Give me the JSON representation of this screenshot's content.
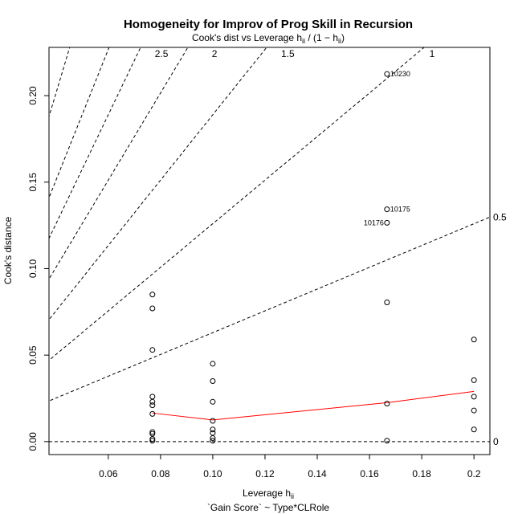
{
  "chart_data": {
    "type": "scatter",
    "title": "Homogeneity for Improv of Prog Skill in Recursion",
    "subtitle": "Cook's dist vs Leverage  h",
    "subtitle_formula": {
      "base": "h",
      "sub": "ii",
      "mid": " / (1 − h",
      "sub2": "ii",
      "end": ")"
    },
    "xlabel": "Leverage  h",
    "xlabel_sub": "ii",
    "ylabel": "Cook's distance",
    "model": "`Gain Score` ~ Type*CLRole",
    "xlim": [
      0.0373,
      0.2061
    ],
    "ylim": [
      -0.0075,
      0.2279
    ],
    "x_ticks": [
      {
        "value": 0.06,
        "label": "0.06"
      },
      {
        "value": 0.08,
        "label": "0.08"
      },
      {
        "value": 0.1,
        "label": "0.10"
      },
      {
        "value": 0.12,
        "label": "0.12"
      },
      {
        "value": 0.14,
        "label": "0.14"
      },
      {
        "value": 0.16,
        "label": "0.16"
      },
      {
        "value": 0.18,
        "label": "0.18"
      },
      {
        "value": 0.2,
        "label": "0.2"
      }
    ],
    "y_ticks": [
      {
        "value": 0.0,
        "label": "0.00"
      },
      {
        "value": 0.05,
        "label": "0.05"
      },
      {
        "value": 0.1,
        "label": "0.10"
      },
      {
        "value": 0.15,
        "label": "0.15"
      },
      {
        "value": 0.2,
        "label": "0.20"
      }
    ],
    "points": [
      {
        "x": 0.0769,
        "y": 0.085
      },
      {
        "x": 0.0769,
        "y": 0.077
      },
      {
        "x": 0.0769,
        "y": 0.053
      },
      {
        "x": 0.0769,
        "y": 0.026
      },
      {
        "x": 0.0769,
        "y": 0.023
      },
      {
        "x": 0.0769,
        "y": 0.021
      },
      {
        "x": 0.0769,
        "y": 0.016
      },
      {
        "x": 0.0769,
        "y": 0.0055
      },
      {
        "x": 0.0769,
        "y": 0.0045
      },
      {
        "x": 0.0769,
        "y": 0.0015
      },
      {
        "x": 0.0769,
        "y": 0.0005
      },
      {
        "x": 0.1,
        "y": 0.045
      },
      {
        "x": 0.1,
        "y": 0.035
      },
      {
        "x": 0.1,
        "y": 0.023
      },
      {
        "x": 0.1,
        "y": 0.012
      },
      {
        "x": 0.1,
        "y": 0.007
      },
      {
        "x": 0.1,
        "y": 0.005
      },
      {
        "x": 0.1,
        "y": 0.002
      },
      {
        "x": 0.1,
        "y": 0.0005
      },
      {
        "x": 0.1667,
        "y": 0.2125,
        "label": "10230"
      },
      {
        "x": 0.1667,
        "y": 0.1343,
        "label": "10175"
      },
      {
        "x": 0.1667,
        "y": 0.1265,
        "label": "10176"
      },
      {
        "x": 0.1667,
        "y": 0.0805
      },
      {
        "x": 0.1667,
        "y": 0.022
      },
      {
        "x": 0.1667,
        "y": 0.0005
      },
      {
        "x": 0.2,
        "y": 0.059
      },
      {
        "x": 0.2,
        "y": 0.0355
      },
      {
        "x": 0.2,
        "y": 0.026
      },
      {
        "x": 0.2,
        "y": 0.018
      },
      {
        "x": 0.2,
        "y": 0.007
      }
    ],
    "smooth_line": {
      "color": "#ff0000",
      "x": [
        0.0769,
        0.1,
        0.1667,
        0.2
      ],
      "y": [
        0.0165,
        0.0125,
        0.0225,
        0.029
      ]
    },
    "contours": [
      {
        "value": 0.5,
        "label": "0.5"
      },
      {
        "value": 1,
        "label": "1"
      },
      {
        "value": 1.5,
        "label": "1.5"
      },
      {
        "value": 2,
        "label": "2"
      },
      {
        "value": 2.5,
        "label": "2.5"
      },
      {
        "value": 3,
        "label": ""
      },
      {
        "value": 4,
        "label": ""
      }
    ],
    "zero_label": "0",
    "point_color": "#000000",
    "line_color": "#000000"
  }
}
